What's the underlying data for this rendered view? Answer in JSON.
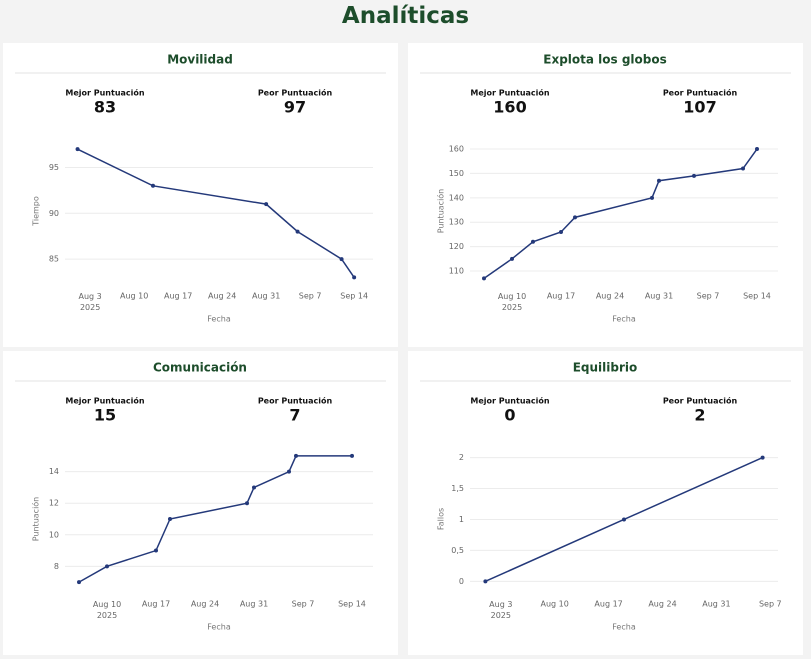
{
  "title": "Analíticas",
  "chart_data": [
    {
      "type": "line",
      "title": "Movilidad",
      "stats": [
        {
          "label": "Mejor Puntuación",
          "value": 83
        },
        {
          "label": "Peor Puntuación",
          "value": 97
        }
      ],
      "x_label": "Fecha",
      "y_label": "Tiempo",
      "color": "#24397a",
      "grid": true,
      "x": [
        "2025-08-01",
        "2025-08-13",
        "2025-08-31",
        "2025-09-05",
        "2025-09-12",
        "2025-09-14"
      ],
      "values": [
        97,
        93,
        91,
        88,
        85,
        83
      ],
      "xlim": [
        "2025-07-30",
        "2025-09-17"
      ],
      "xticks": [
        {
          "value": "2025-08-03",
          "label": "Aug 3\n2025"
        },
        {
          "value": "2025-08-10",
          "label": "Aug 10"
        },
        {
          "value": "2025-08-17",
          "label": "Aug 17"
        },
        {
          "value": "2025-08-24",
          "label": "Aug 24"
        },
        {
          "value": "2025-08-31",
          "label": "Aug 31"
        },
        {
          "value": "2025-09-07",
          "label": "Sep 7"
        },
        {
          "value": "2025-09-14",
          "label": "Sep 14"
        }
      ],
      "ylim": [
        82.5,
        98
      ],
      "yticks": [
        85,
        90,
        95
      ]
    },
    {
      "type": "line",
      "title": "Explota los globos",
      "stats": [
        {
          "label": "Mejor Puntuación",
          "value": 160
        },
        {
          "label": "Peor Puntuación",
          "value": 107
        }
      ],
      "x_label": "Fecha",
      "y_label": "Puntuación",
      "color": "#24397a",
      "grid": true,
      "x": [
        "2025-08-06",
        "2025-08-10",
        "2025-08-13",
        "2025-08-17",
        "2025-08-19",
        "2025-08-30",
        "2025-08-31",
        "2025-09-05",
        "2025-09-12",
        "2025-09-14"
      ],
      "values": [
        107,
        115,
        122,
        126,
        132,
        140,
        147,
        149,
        152,
        160
      ],
      "xlim": [
        "2025-08-04",
        "2025-09-17"
      ],
      "xticks": [
        {
          "value": "2025-08-10",
          "label": "Aug 10\n2025"
        },
        {
          "value": "2025-08-17",
          "label": "Aug 17"
        },
        {
          "value": "2025-08-24",
          "label": "Aug 24"
        },
        {
          "value": "2025-08-31",
          "label": "Aug 31"
        },
        {
          "value": "2025-09-07",
          "label": "Sep 7"
        },
        {
          "value": "2025-09-14",
          "label": "Sep 14"
        }
      ],
      "ylim": [
        105.5,
        163.7
      ],
      "yticks": [
        110,
        120,
        130,
        140,
        150,
        160
      ]
    },
    {
      "type": "line",
      "title": "Comunicación",
      "stats": [
        {
          "label": "Mejor Puntuación",
          "value": 15
        },
        {
          "label": "Peor Puntuación",
          "value": 7
        }
      ],
      "x_label": "Fecha",
      "y_label": "Puntuación",
      "color": "#24397a",
      "grid": true,
      "x": [
        "2025-08-06",
        "2025-08-10",
        "2025-08-17",
        "2025-08-19",
        "2025-08-30",
        "2025-08-31",
        "2025-09-05",
        "2025-09-06",
        "2025-09-14"
      ],
      "values": [
        7,
        8,
        9,
        11,
        12,
        13,
        14,
        15,
        15
      ],
      "xlim": [
        "2025-08-04",
        "2025-09-17"
      ],
      "xticks": [
        {
          "value": "2025-08-10",
          "label": "Aug 10\n2025"
        },
        {
          "value": "2025-08-17",
          "label": "Aug 17"
        },
        {
          "value": "2025-08-24",
          "label": "Aug 24"
        },
        {
          "value": "2025-08-31",
          "label": "Aug 31"
        },
        {
          "value": "2025-09-07",
          "label": "Sep 7"
        },
        {
          "value": "2025-09-14",
          "label": "Sep 14"
        }
      ],
      "ylim": [
        6.5,
        15.5
      ],
      "yticks": [
        8,
        10,
        12,
        14
      ]
    },
    {
      "type": "line",
      "title": "Equilibrio",
      "stats": [
        {
          "label": "Mejor Puntuación",
          "value": 0
        },
        {
          "label": "Peor Puntuación",
          "value": 2
        }
      ],
      "x_label": "Fecha",
      "y_label": "Fallos",
      "color": "#24397a",
      "grid": true,
      "x": [
        "2025-08-01",
        "2025-08-19",
        "2025-09-06"
      ],
      "values": [
        0,
        1,
        2
      ],
      "xlim": [
        "2025-07-30",
        "2025-09-08"
      ],
      "xticks": [
        {
          "value": "2025-08-03",
          "label": "Aug 3\n2025"
        },
        {
          "value": "2025-08-10",
          "label": "Aug 10"
        },
        {
          "value": "2025-08-17",
          "label": "Aug 17"
        },
        {
          "value": "2025-08-24",
          "label": "Aug 24"
        },
        {
          "value": "2025-08-31",
          "label": "Aug 31"
        },
        {
          "value": "2025-09-07",
          "label": "Sep 7"
        }
      ],
      "ylim": [
        -0.14,
        2.155
      ],
      "yticks": [
        0,
        {
          "value": 0.5,
          "label": "0,5"
        },
        1,
        {
          "value": 1.5,
          "label": "1,5"
        },
        2
      ]
    }
  ]
}
